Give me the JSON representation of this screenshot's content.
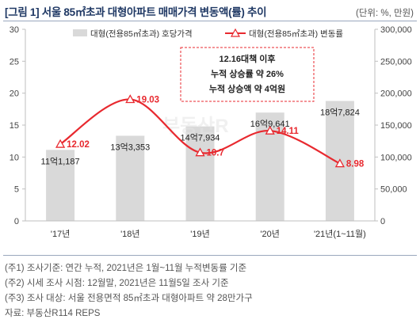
{
  "header": {
    "title": "[그림 1] 서울 85㎡초과 대형아파트 매매가격 변동액(률) 추이",
    "unit": "(단위: %, 만원)"
  },
  "annotation": {
    "lines": [
      "12.16대책 이후",
      "누적 상승률 약 26%",
      "누적 상승액 약 4억원"
    ]
  },
  "notes": [
    "(주1) 조사기준: 연간 누적, 2021년은 1월~11월 누적변동률 기준",
    "(주2) 시세 조사 시점: 12월말, 2021년은 11월5일 조사 기준",
    "(주3) 조사 대상: 서울 전용면적 85㎡초과 대형아파트 약 28만가구",
    "자료: 부동산R114 REPS"
  ],
  "chart_data": {
    "type": "bar+line",
    "categories": [
      "'17년",
      "'18년",
      "'19년",
      "'20년",
      "'21년(1~11월)"
    ],
    "legend": {
      "position": "top",
      "bar_label": "대형(전용85㎡초과) 호당가격",
      "line_label": "대형(전용85㎡초과) 변동률"
    },
    "series": [
      {
        "name": "대형(전용85㎡초과) 호당가격",
        "kind": "bar",
        "axis": "right",
        "values": [
          111187,
          133353,
          147934,
          169641,
          187824
        ],
        "labels": [
          "11억1,187",
          "13억3,353",
          "14억7,934",
          "16억9,641",
          "18억7,824"
        ],
        "color": "#d9d9d9"
      },
      {
        "name": "대형(전용85㎡초과) 변동률",
        "kind": "line",
        "axis": "left",
        "values": [
          12.02,
          19.03,
          10.7,
          14.11,
          8.98
        ],
        "labels": [
          "12.02",
          "19.03",
          "10.7",
          "14.11",
          "8.98"
        ],
        "color": "#e8292f"
      }
    ],
    "y_left": {
      "min": 0,
      "max": 30,
      "ticks": [
        0,
        5,
        10,
        15,
        20,
        25,
        30
      ],
      "tick_labels": [
        "0",
        "5",
        "10",
        "15",
        "20",
        "25",
        "30"
      ]
    },
    "y_right": {
      "min": 0,
      "max": 300000,
      "ticks": [
        0,
        50000,
        100000,
        150000,
        200000,
        250000,
        300000
      ],
      "tick_labels": [
        "0",
        "50,000",
        "100,000",
        "150,000",
        "200,000",
        "250,000",
        "300,000"
      ]
    },
    "grid": false,
    "watermark": "부동산R"
  }
}
